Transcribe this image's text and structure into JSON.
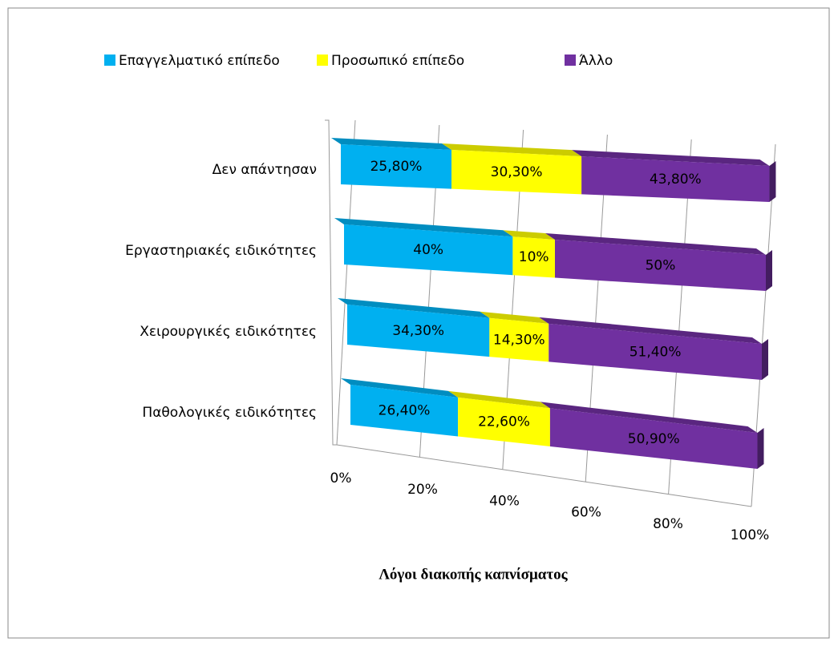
{
  "chart_data": {
    "type": "bar3d_stacked_horizontal",
    "title": "Λόγοι διακοπής καπνίσματος",
    "categories": [
      "Παθολογικές ειδικότητες",
      "Χειρουργικές ειδικότητες",
      "Εργαστηριακές ειδικότητες",
      "Δεν απάντησαν"
    ],
    "series": [
      {
        "name": "Επαγγελματικό επίπεδο",
        "color": "#00b0f0",
        "values": [
          26.4,
          34.3,
          40,
          25.8
        ],
        "value_labels": [
          "26,40%",
          "34,30%",
          "40%",
          "25,80%"
        ]
      },
      {
        "name": "Προσωπικό επίπεδο",
        "color": "#ffff00",
        "values": [
          22.6,
          14.3,
          10,
          30.3
        ],
        "value_labels": [
          "22,60%",
          "14,30%",
          "10%",
          "30,30%"
        ]
      },
      {
        "name": "Άλλο",
        "color": "#7030a0",
        "values": [
          50.9,
          51.4,
          50,
          43.8
        ],
        "value_labels": [
          "50,90%",
          "51,40%",
          "50%",
          "43,80%"
        ]
      }
    ],
    "xlim": [
      0,
      100
    ],
    "xticks": [
      {
        "value": 0,
        "label": "0%"
      },
      {
        "value": 20,
        "label": "20%"
      },
      {
        "value": 40,
        "label": "40%"
      },
      {
        "value": 60,
        "label": "60%"
      },
      {
        "value": 80,
        "label": "80%"
      },
      {
        "value": 100,
        "label": "100%"
      }
    ],
    "grid": true,
    "legend": "top"
  }
}
